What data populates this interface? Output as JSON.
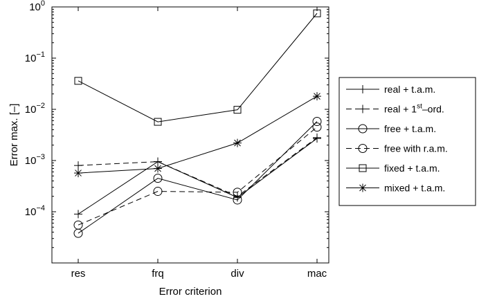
{
  "chart_data": {
    "type": "line",
    "title": "",
    "xlabel": "Error criterion",
    "ylabel": "Error max. [–]",
    "yscale": "log",
    "ylim": [
      1e-05,
      1
    ],
    "y_tick_labels": [
      {
        "base": "10",
        "exp": "0"
      },
      {
        "base": "10",
        "exp": "−1"
      },
      {
        "base": "10",
        "exp": "−2"
      },
      {
        "base": "10",
        "exp": "−3"
      },
      {
        "base": "10",
        "exp": "−4"
      }
    ],
    "categories": [
      "res",
      "frq",
      "div",
      "mac"
    ],
    "grid": false,
    "legend_position": "right",
    "series": [
      {
        "name": "real + t.a.m.",
        "dash": "solid",
        "marker": "plus",
        "values": [
          9e-05,
          0.00095,
          0.00019,
          0.0027
        ]
      },
      {
        "name_parts": [
          "real + 1",
          "st",
          "–ord."
        ],
        "dash": "dashed",
        "marker": "plus",
        "values": [
          0.0008,
          0.00095,
          0.0002,
          0.0028
        ]
      },
      {
        "name": "free + t.a.m.",
        "dash": "solid",
        "marker": "circle",
        "values": [
          3.8e-05,
          0.00045,
          0.00017,
          0.0058
        ]
      },
      {
        "name": "free with r.a.m.",
        "dash": "dashed",
        "marker": "circle",
        "values": [
          5.5e-05,
          0.00025,
          0.00024,
          0.0045
        ]
      },
      {
        "name": "fixed + t.a.m.",
        "dash": "solid",
        "marker": "square",
        "values": [
          0.036,
          0.0057,
          0.0098,
          0.75
        ]
      },
      {
        "name": "mixed + t.a.m.",
        "dash": "solid",
        "marker": "asterisk",
        "values": [
          0.00057,
          0.0007,
          0.0022,
          0.018
        ]
      }
    ]
  }
}
